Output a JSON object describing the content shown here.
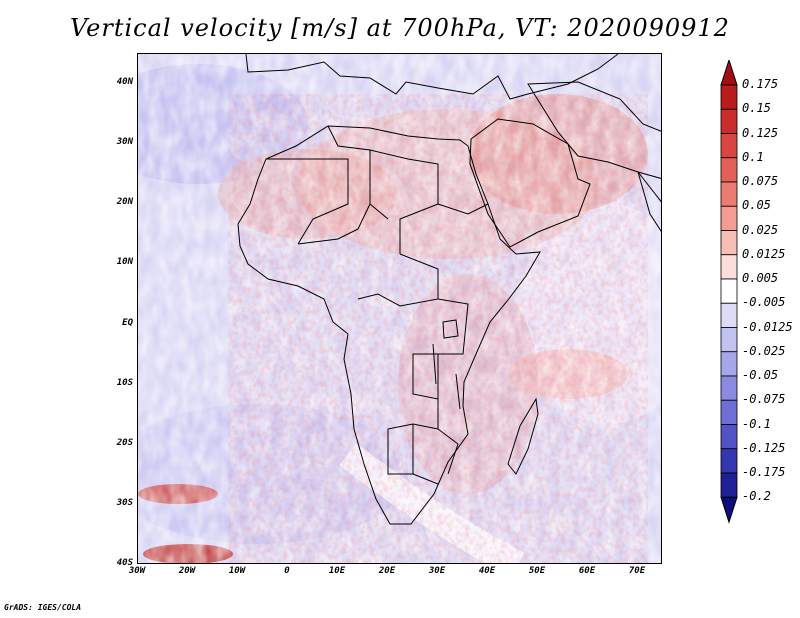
{
  "title": "Vertical velocity [m/s] at 700hPa, VT: 2020090912",
  "credit": "GrADS: IGES/COLA",
  "map": {
    "variable": "Vertical velocity",
    "units": "m/s",
    "level": "700hPa",
    "valid_time": "2020090912",
    "region": "Africa and Middle East",
    "lon_range": [
      -30,
      75
    ],
    "lat_range": [
      -40,
      45
    ],
    "lat_ticks": [
      {
        "value": 40,
        "label": "40N"
      },
      {
        "value": 30,
        "label": "30N"
      },
      {
        "value": 20,
        "label": "20N"
      },
      {
        "value": 10,
        "label": "10N"
      },
      {
        "value": 0,
        "label": "EQ"
      },
      {
        "value": -10,
        "label": "10S"
      },
      {
        "value": -20,
        "label": "20S"
      },
      {
        "value": -30,
        "label": "30S"
      },
      {
        "value": -40,
        "label": "40S"
      }
    ],
    "lon_ticks": [
      {
        "value": -30,
        "label": "30W"
      },
      {
        "value": -20,
        "label": "20W"
      },
      {
        "value": -10,
        "label": "10W"
      },
      {
        "value": 0,
        "label": "0"
      },
      {
        "value": 10,
        "label": "10E"
      },
      {
        "value": 20,
        "label": "20E"
      },
      {
        "value": 30,
        "label": "30E"
      },
      {
        "value": 40,
        "label": "40E"
      },
      {
        "value": 50,
        "label": "50E"
      },
      {
        "value": 60,
        "label": "60E"
      },
      {
        "value": 70,
        "label": "70E"
      }
    ]
  },
  "colorbar": {
    "levels": [
      "0.175",
      "0.15",
      "0.125",
      "0.1",
      "0.075",
      "0.05",
      "0.025",
      "0.0125",
      "0.005",
      "-0.005",
      "-0.0125",
      "-0.025",
      "-0.05",
      "-0.075",
      "-0.1",
      "-0.125",
      "-0.175",
      "-0.2"
    ],
    "colors": [
      "#a00f15",
      "#b81c1c",
      "#cb2d2a",
      "#d94640",
      "#e36058",
      "#eb7c72",
      "#f29c92",
      "#f7beb5",
      "#fbdedb",
      "#ffffff",
      "#dcdcf6",
      "#c2c2f0",
      "#a6a6ea",
      "#8a8ae0",
      "#6e6ed6",
      "#5353c8",
      "#3636b0",
      "#1f1f98",
      "#0e0e7a"
    ]
  }
}
